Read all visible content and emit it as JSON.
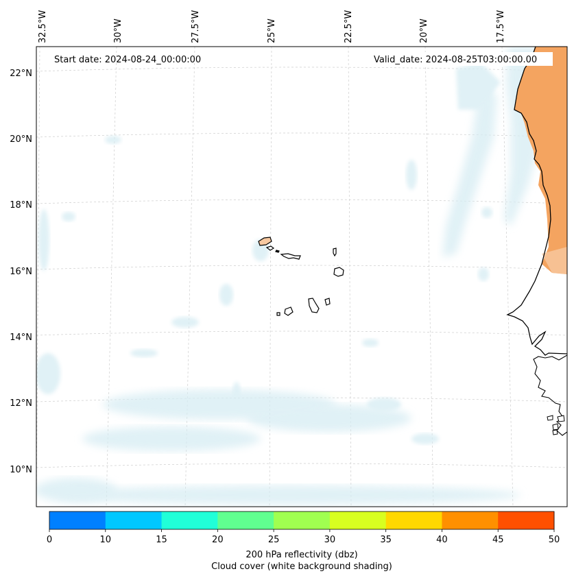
{
  "map": {
    "start_date_label": "Start date: 2024-08-24_00:00:00",
    "valid_date_label": "Valid_date: 2024-08-25T03:00:00.00",
    "lon_labels": [
      "32.5°W",
      "30°W",
      "27.5°W",
      "25°W",
      "22.5°W",
      "20°W",
      "17.5°W"
    ],
    "lat_labels": [
      "22°N",
      "20°N",
      "18°N",
      "16°N",
      "14°N",
      "12°N",
      "10°N"
    ]
  },
  "colorbar": {
    "ticks": [
      "0",
      "10",
      "15",
      "20",
      "25",
      "30",
      "35",
      "40",
      "45",
      "50"
    ],
    "colors": [
      "#0080ff",
      "#00c8ff",
      "#20ffd8",
      "#60ff90",
      "#a0ff50",
      "#d8ff20",
      "#ffd800",
      "#ff9000",
      "#ff5000"
    ],
    "title_line1": "200 hPa reflectivity (dbz)",
    "title_line2": "Cloud cover (white background shading)"
  },
  "legend_colors": {
    "cloud_light": "#d6ecf3",
    "land_orange": "#f4a460",
    "coast": "#000000"
  }
}
